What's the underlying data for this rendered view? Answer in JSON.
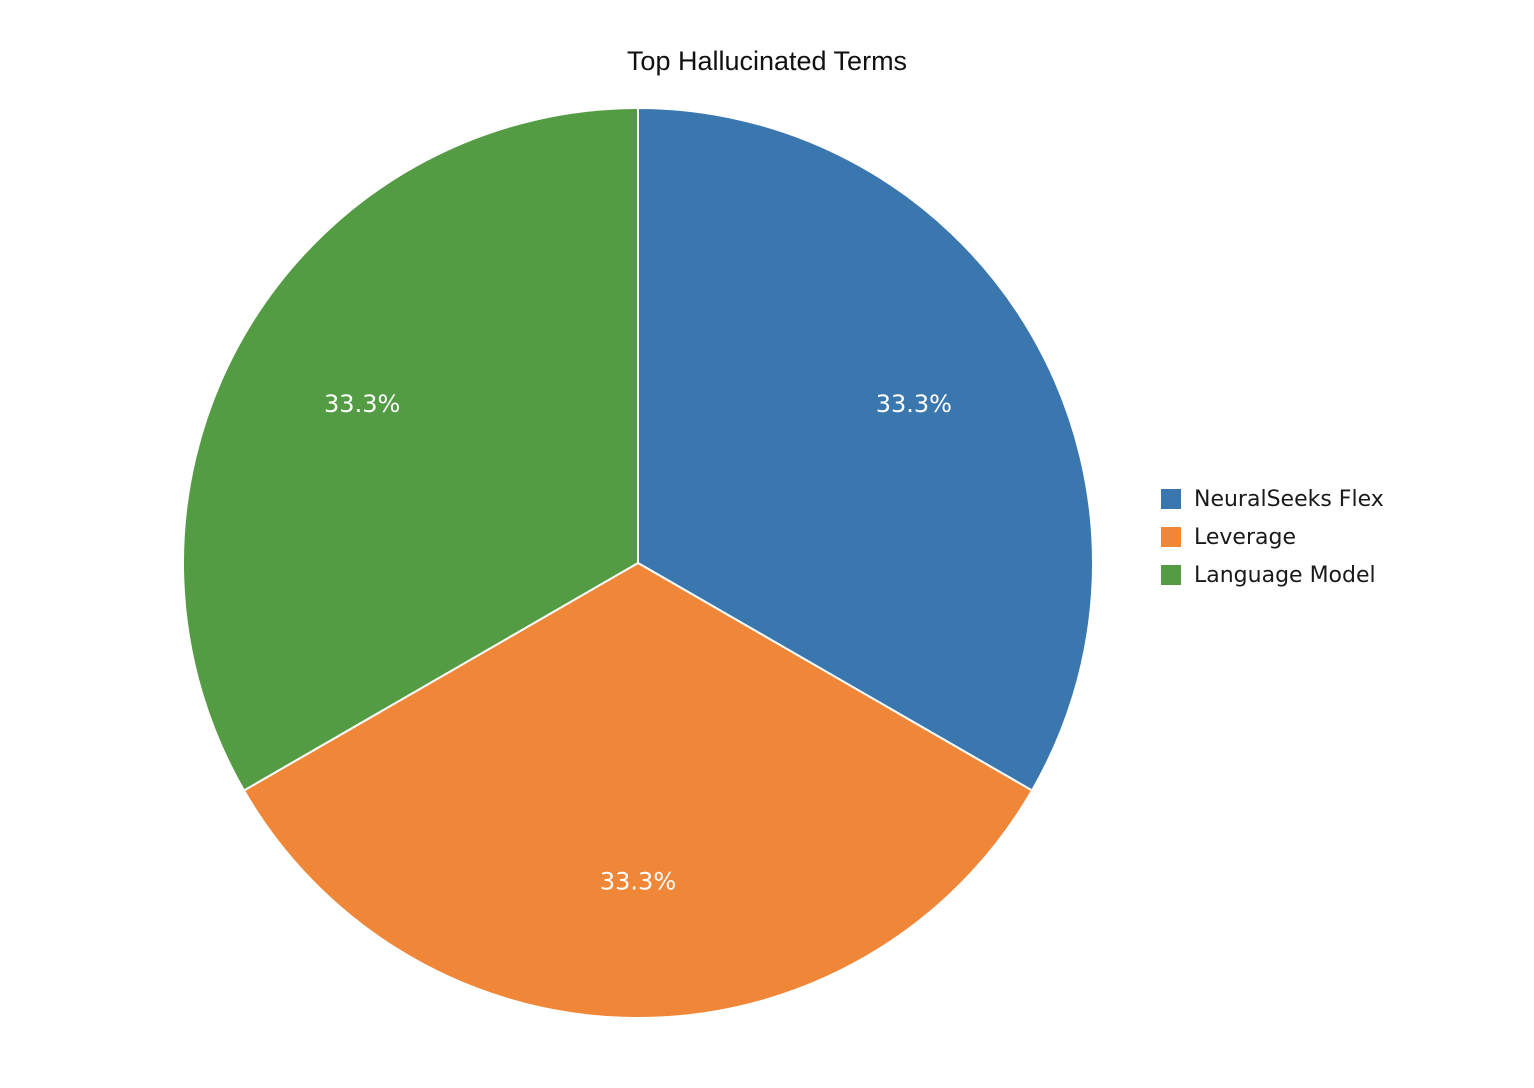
{
  "chart_data": {
    "type": "pie",
    "title": "Top Hallucinated Terms",
    "slices": [
      {
        "label": "NeuralSeeks Flex",
        "value": 33.3,
        "display": "33.3%",
        "color": "#3a77ae"
      },
      {
        "label": "Leverage",
        "value": 33.3,
        "display": "33.3%",
        "color": "#f08637"
      },
      {
        "label": "Language Model",
        "value": 33.3,
        "display": "33.3%",
        "color": "#539c43"
      }
    ],
    "legend_position": "right",
    "start_angle": "12 o'clock",
    "direction": "clockwise"
  }
}
